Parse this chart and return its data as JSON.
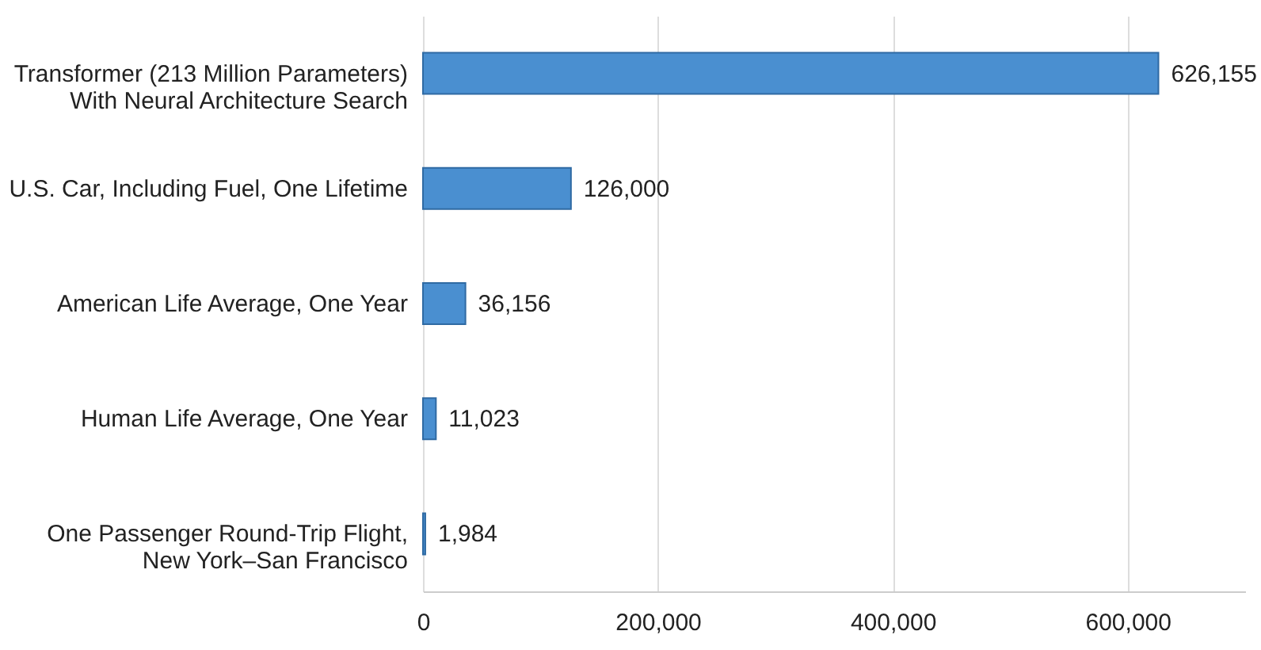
{
  "chart_data": {
    "type": "bar",
    "orientation": "horizontal",
    "categories": [
      "Transformer (213 Million Parameters)\nWith Neural Architecture Search",
      "U.S. Car, Including Fuel, One Lifetime",
      "American Life Average, One Year",
      "Human Life Average, One Year",
      "One Passenger Round-Trip Flight,\nNew York–San Francisco"
    ],
    "values": [
      626155,
      126000,
      36156,
      11023,
      1984
    ],
    "color": "#4a8fd0",
    "value_labels": [
      "626,155",
      "126,000",
      "36,156",
      "11,023",
      "1,984"
    ],
    "xlim": [
      0,
      700000
    ],
    "xticks": [
      0,
      {
        "value": 200000,
        "label": "200,000"
      },
      {
        "value": 400000,
        "label": "400,000"
      },
      {
        "value": 600000,
        "label": "600,000"
      }
    ],
    "grid": "x"
  }
}
